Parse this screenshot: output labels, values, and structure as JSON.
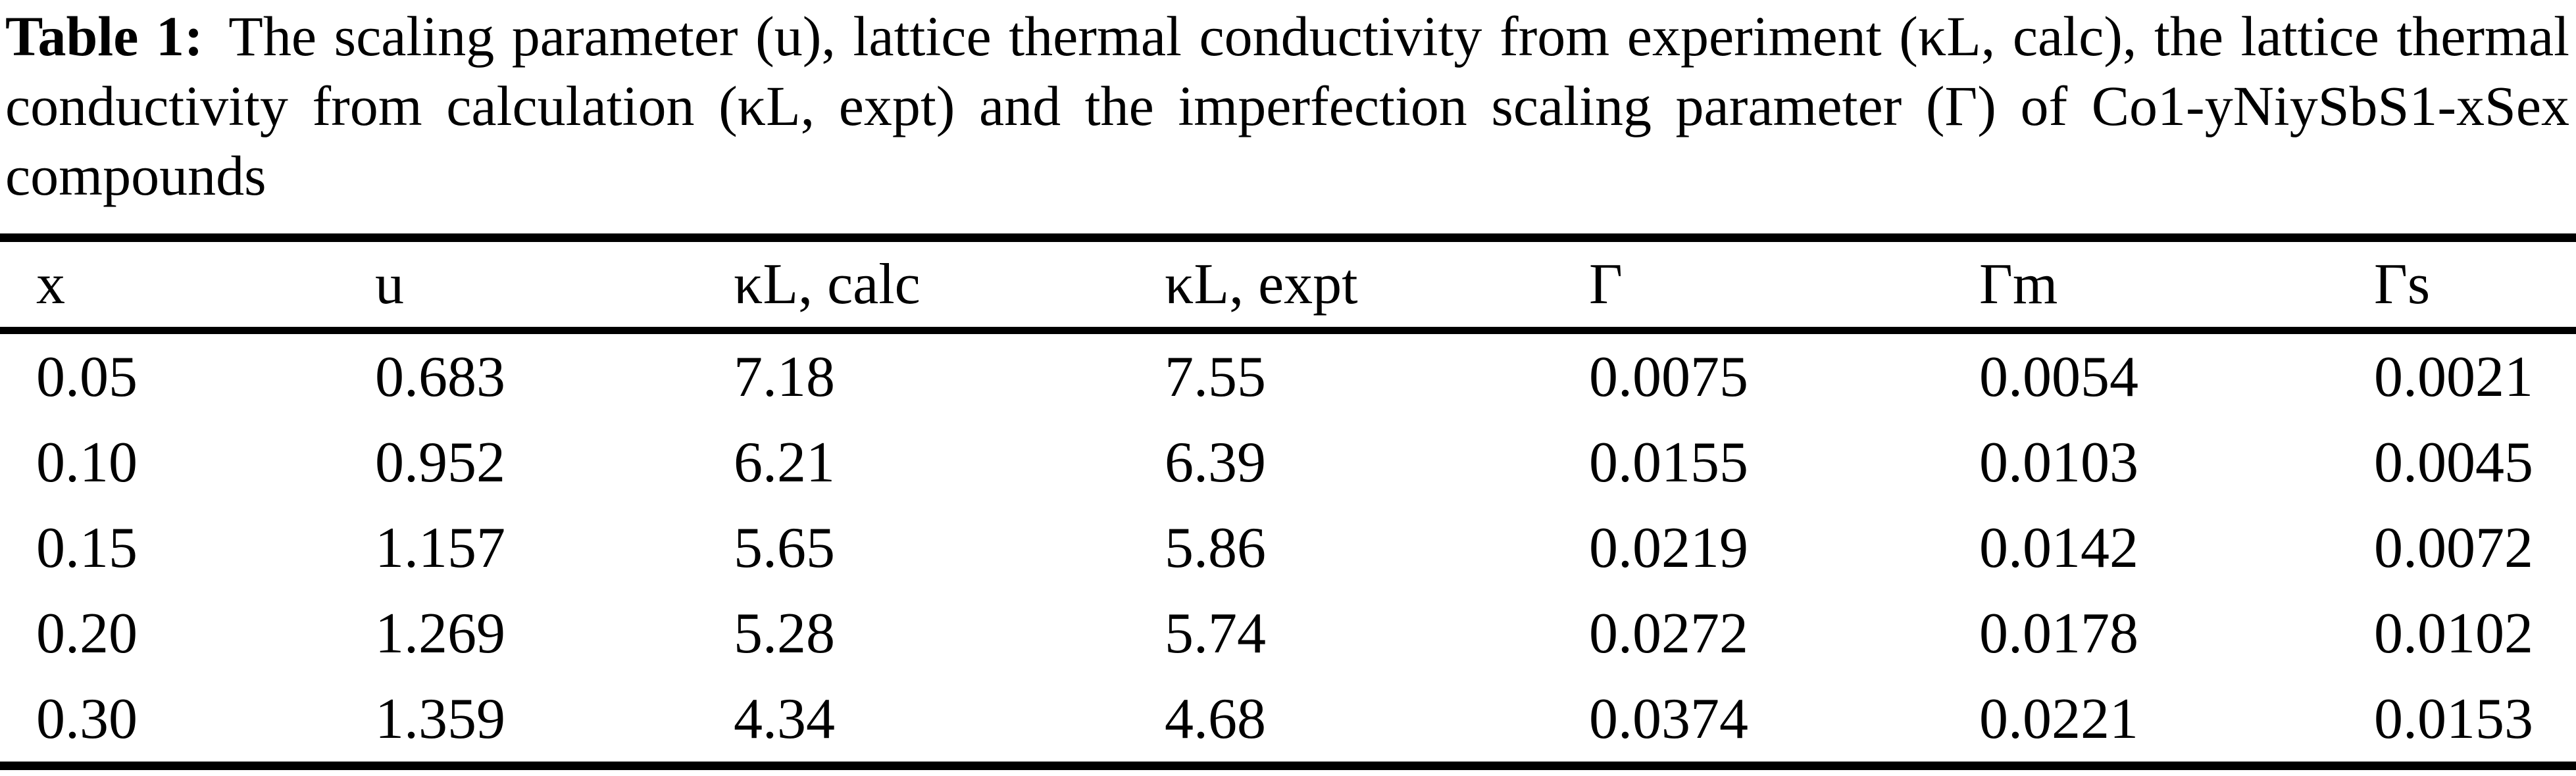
{
  "caption": {
    "label": "Table 1:",
    "line1_rest": "The scaling parameter (u), lattice thermal conductivity from experiment (κL, calc), the lattice thermal",
    "line2": "conductivity from calculation (κL, expt) and the imperfection scaling parameter (Γ) of Co1-yNiySbS1-xSex",
    "line3": "compounds"
  },
  "table": {
    "columns": [
      "x",
      "u",
      "κL, calc",
      "κL, expt",
      "Γ",
      "Γm",
      "Γs"
    ],
    "rows": [
      [
        "0.05",
        "0.683",
        "7.18",
        "7.55",
        "0.0075",
        "0.0054",
        "0.0021"
      ],
      [
        "0.10",
        "0.952",
        "6.21",
        "6.39",
        "0.0155",
        "0.0103",
        "0.0045"
      ],
      [
        "0.15",
        "1.157",
        "5.65",
        "5.86",
        "0.0219",
        "0.0142",
        "0.0072"
      ],
      [
        "0.20",
        "1.269",
        "5.28",
        "5.74",
        "0.0272",
        "0.0178",
        "0.0102"
      ],
      [
        "0.30",
        "1.359",
        "4.34",
        "4.68",
        "0.0374",
        "0.0221",
        "0.0153"
      ]
    ]
  },
  "colors": {
    "text": "#000000",
    "background": "#ffffff",
    "rule": "#000000"
  }
}
